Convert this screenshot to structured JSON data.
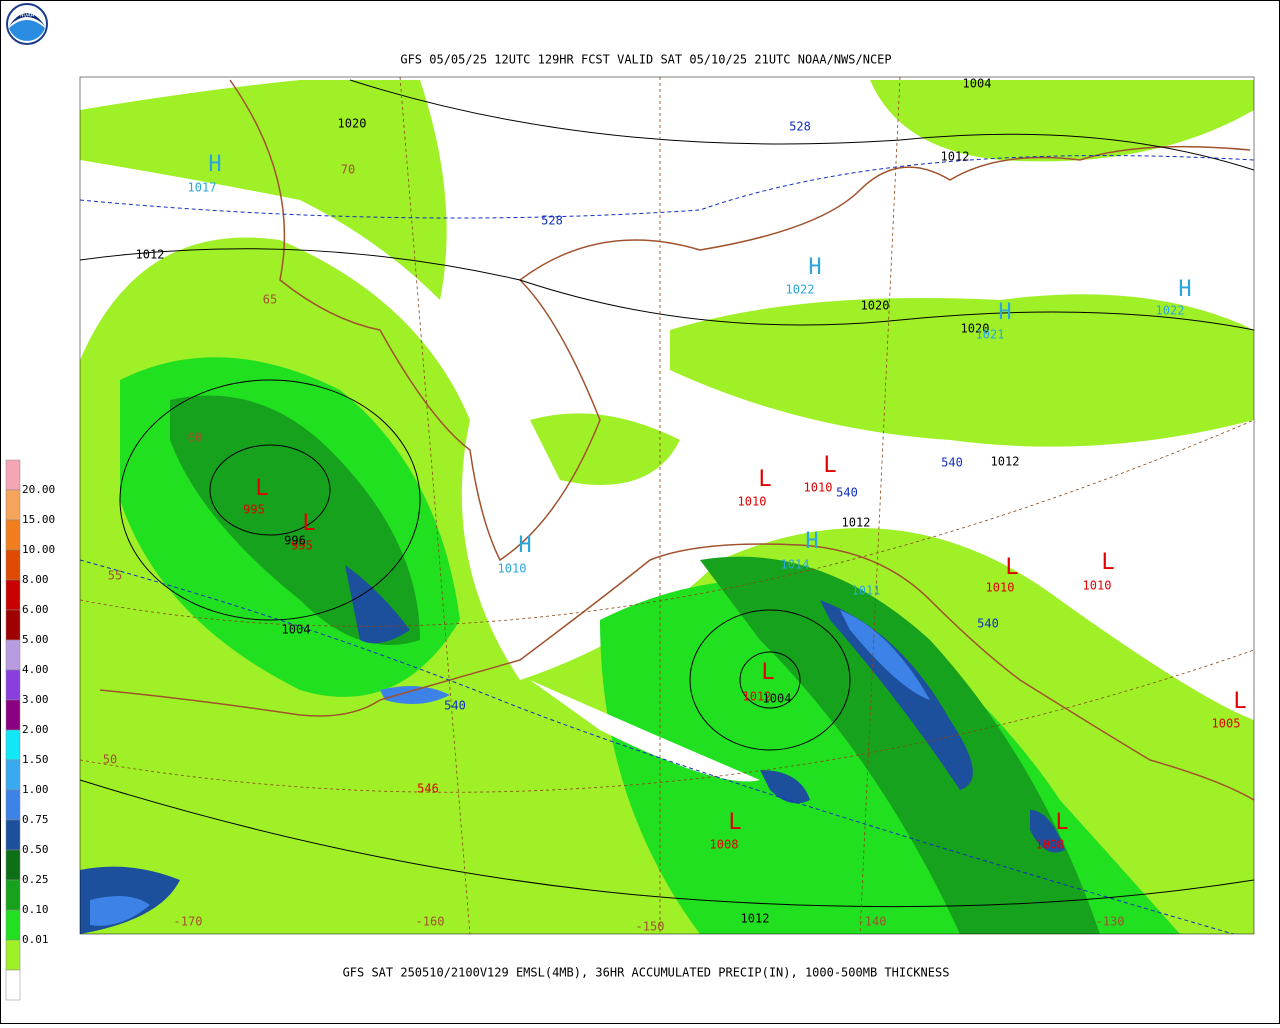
{
  "header": {
    "logo_text": "NOAA",
    "title": "GFS 05/05/25 12UTC 129HR FCST VALID SAT 05/10/25 21UTC NOAA/NWS/NCEP"
  },
  "footer": {
    "caption": "GFS SAT 250510/2100V129 EMSL(4MB), 36HR ACCUMULATED PRECIP(IN), 1000-500MB THICKNESS"
  },
  "legend": {
    "labels": [
      "20.00",
      "15.00",
      "10.00",
      "8.00",
      "6.00",
      "5.00",
      "4.00",
      "3.00",
      "2.00",
      "1.50",
      "1.00",
      "0.75",
      "0.50",
      "0.25",
      "0.10",
      "0.01"
    ],
    "colors": [
      "#f4a6b4",
      "#f5a45a",
      "#f27d1c",
      "#e04a00",
      "#c80000",
      "#a00000",
      "#b89be0",
      "#8a3ee0",
      "#8a0080",
      "#10e8f8",
      "#38aaf0",
      "#3d82e6",
      "#1c4f9c",
      "#0e7016",
      "#16a21c",
      "#20e020",
      "#a0f028",
      "#ffffff"
    ]
  },
  "map_labels": [
    {
      "text": "1020",
      "color": "#000000"
    },
    {
      "text": "H",
      "color": "#2aa6dc"
    },
    {
      "text": "1017",
      "color": "#2aa6dc"
    },
    {
      "text": "70",
      "color": "#a0522d"
    },
    {
      "text": "1012",
      "color": "#000000"
    },
    {
      "text": "528",
      "color": "#1030c0"
    },
    {
      "text": "528",
      "color": "#1030c0"
    },
    {
      "text": "1004",
      "color": "#000000"
    },
    {
      "text": "1012",
      "color": "#000000"
    },
    {
      "text": "H",
      "color": "#2aa6dc"
    },
    {
      "text": "1022",
      "color": "#2aa6dc"
    },
    {
      "text": "1020",
      "color": "#000000"
    },
    {
      "text": "1020",
      "color": "#000000"
    },
    {
      "text": "H",
      "color": "#2aa6dc"
    },
    {
      "text": "1021",
      "color": "#2aa6dc"
    },
    {
      "text": "H",
      "color": "#2aa6dc"
    },
    {
      "text": "1022",
      "color": "#2aa6dc"
    },
    {
      "text": "65",
      "color": "#a0522d"
    },
    {
      "text": "60",
      "color": "#a0522d"
    },
    {
      "text": "L",
      "color": "#e00000"
    },
    {
      "text": "995",
      "color": "#e00000"
    },
    {
      "text": "L",
      "color": "#e00000"
    },
    {
      "text": "995",
      "color": "#e00000"
    },
    {
      "text": "996",
      "color": "#000000"
    },
    {
      "text": "55",
      "color": "#a0522d"
    },
    {
      "text": "1004",
      "color": "#000000"
    },
    {
      "text": "H",
      "color": "#2aa6dc"
    },
    {
      "text": "1010",
      "color": "#2aa6dc"
    },
    {
      "text": "L",
      "color": "#e00000"
    },
    {
      "text": "1010",
      "color": "#e00000"
    },
    {
      "text": "L",
      "color": "#e00000"
    },
    {
      "text": "1010",
      "color": "#e00000"
    },
    {
      "text": "540",
      "color": "#1030c0"
    },
    {
      "text": "540",
      "color": "#1030c0"
    },
    {
      "text": "1012",
      "color": "#000000"
    },
    {
      "text": "1012",
      "color": "#000000"
    },
    {
      "text": "H",
      "color": "#2aa6dc"
    },
    {
      "text": "1014",
      "color": "#2aa6dc"
    },
    {
      "text": "1011",
      "color": "#2aa6dc"
    },
    {
      "text": "L",
      "color": "#e00000"
    },
    {
      "text": "1010",
      "color": "#e00000"
    },
    {
      "text": "L",
      "color": "#e00000"
    },
    {
      "text": "1010",
      "color": "#e00000"
    },
    {
      "text": "540",
      "color": "#1030c0"
    },
    {
      "text": "540",
      "color": "#1030c0"
    },
    {
      "text": "L",
      "color": "#e00000"
    },
    {
      "text": "1012",
      "color": "#e00000"
    },
    {
      "text": "1004",
      "color": "#000000"
    },
    {
      "text": "L",
      "color": "#e00000"
    },
    {
      "text": "1005",
      "color": "#e00000"
    },
    {
      "text": "50",
      "color": "#a0522d"
    },
    {
      "text": "546",
      "color": "#e00000"
    },
    {
      "text": "L",
      "color": "#e00000"
    },
    {
      "text": "1008",
      "color": "#e00000"
    },
    {
      "text": "L",
      "color": "#e00000"
    },
    {
      "text": "1008",
      "color": "#e00000"
    },
    {
      "text": "-170",
      "color": "#a0522d"
    },
    {
      "text": "-160",
      "color": "#a0522d"
    },
    {
      "text": "-150",
      "color": "#a0522d"
    },
    {
      "text": "1012",
      "color": "#000000"
    },
    {
      "text": "-140",
      "color": "#a0522d"
    },
    {
      "text": "-130",
      "color": "#a0522d"
    }
  ]
}
